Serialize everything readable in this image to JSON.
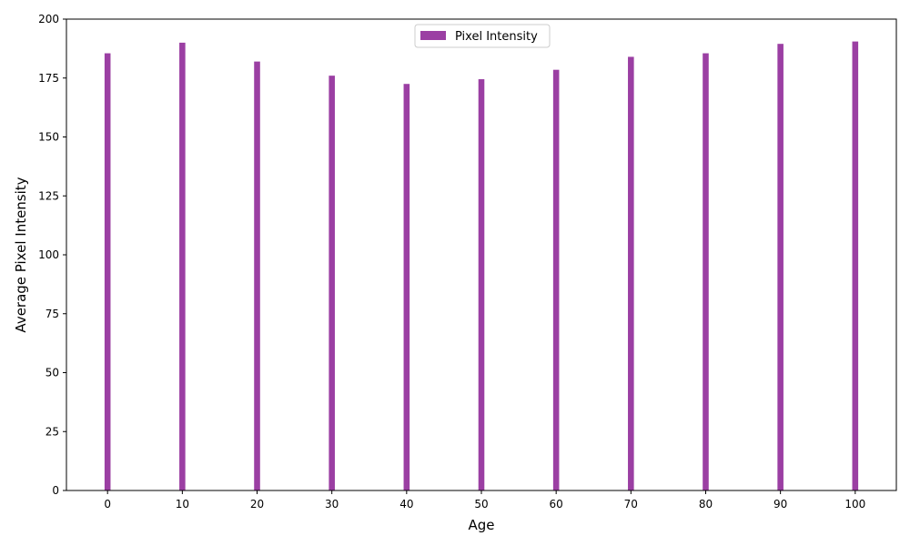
{
  "chart_data": {
    "type": "bar",
    "title": "",
    "xlabel": "Age",
    "ylabel": "Average Pixel Intensity",
    "x": [
      0,
      10,
      20,
      30,
      40,
      50,
      60,
      70,
      80,
      90,
      100
    ],
    "x_tick_labels": [
      "0",
      "10",
      "20",
      "30",
      "40",
      "50",
      "60",
      "70",
      "80",
      "90",
      "100"
    ],
    "y_ticks": [
      0,
      25,
      50,
      75,
      100,
      125,
      150,
      175,
      200
    ],
    "y_tick_labels": [
      "0",
      "25",
      "50",
      "75",
      "100",
      "125",
      "150",
      "175",
      "200"
    ],
    "xlim": [
      -5.5,
      105.5
    ],
    "ylim": [
      0,
      200
    ],
    "bar_width": 0.8,
    "grid": false,
    "legend_position": "top-center",
    "series": [
      {
        "name": "Pixel Intensity",
        "color": "#9b3fa3",
        "values": [
          185.5,
          190,
          182,
          176,
          172.5,
          174.5,
          178.5,
          184,
          185.5,
          189.5,
          190.5
        ]
      }
    ]
  }
}
